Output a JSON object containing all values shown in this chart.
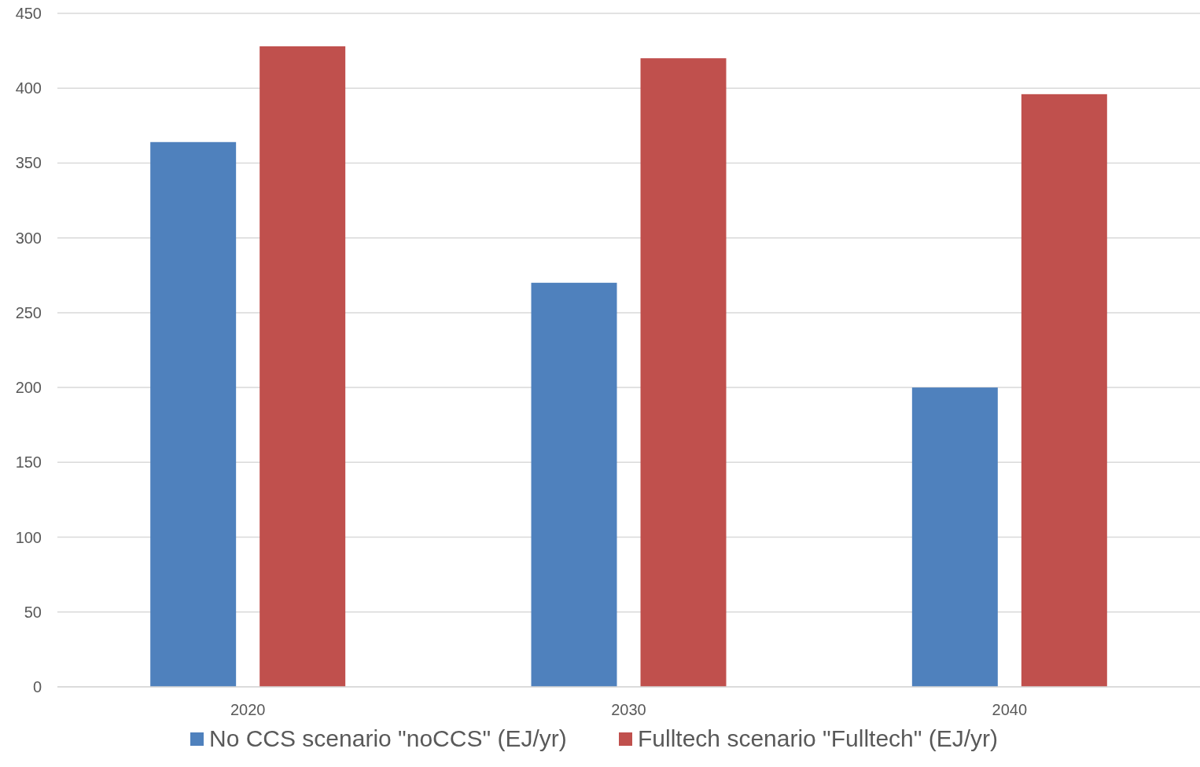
{
  "chart_data": {
    "type": "bar",
    "categories": [
      "2020",
      "2030",
      "2040"
    ],
    "series": [
      {
        "name": "No CCS scenario \"noCCS\" (EJ/yr)",
        "color": "#4f81bd",
        "values": [
          364,
          270,
          200
        ]
      },
      {
        "name": "Fulltech scenario \"Fulltech\" (EJ/yr)",
        "color": "#c0504d",
        "values": [
          428,
          420,
          396
        ]
      }
    ],
    "ylim": [
      0,
      450
    ],
    "yticks": [
      0,
      50,
      100,
      150,
      200,
      250,
      300,
      350,
      400,
      450
    ],
    "grid": "y",
    "legend": "bottom"
  }
}
